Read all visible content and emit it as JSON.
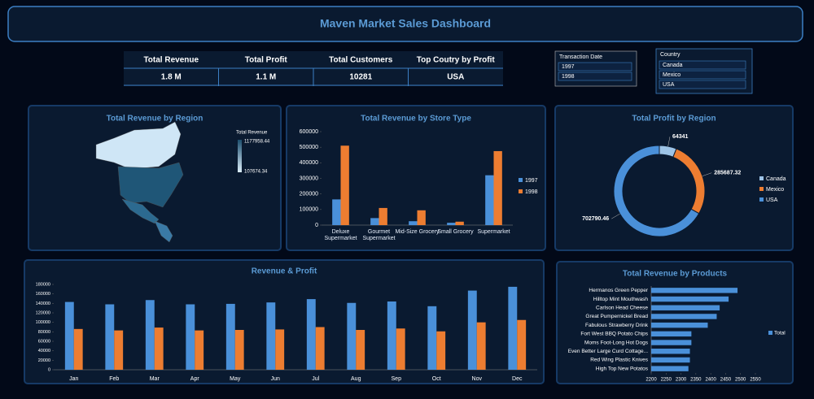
{
  "header": {
    "title": "Maven Market Sales Dashboard"
  },
  "kpis": {
    "headers": [
      "Total Revenue",
      "Total Profit",
      "Total Customers",
      "Top Coutry by Profit"
    ],
    "values": [
      "1.8 M",
      "1.1 M",
      "10281",
      "USA"
    ]
  },
  "slicers": [
    {
      "title": "Transaction Date",
      "items": [
        "1997",
        "1998"
      ]
    },
    {
      "title": "Country",
      "items": [
        "Canada",
        "Mexico",
        "USA"
      ]
    }
  ],
  "chart_data": [
    {
      "type": "map",
      "title": "Total Revenue by Region",
      "legend_title": "Total Revenue",
      "legend_max": 1177958.44,
      "legend_min": 107674.34
    },
    {
      "type": "bar",
      "title": "Total Revenue by Store Type",
      "categories": [
        "Deluxe Supermarket",
        "Gourmet Supermarket",
        "Mid-Size Grocery",
        "Small Grocery",
        "Supermarket"
      ],
      "series": [
        {
          "name": "1997",
          "color": "#4a90d9",
          "values": [
            165000,
            45000,
            25000,
            15000,
            320000
          ]
        },
        {
          "name": "1998",
          "color": "#ed7d31",
          "values": [
            510000,
            110000,
            95000,
            22000,
            475000
          ]
        }
      ],
      "ylim": [
        0,
        600000
      ],
      "yticks": [
        0,
        100000,
        200000,
        300000,
        400000,
        500000,
        600000
      ]
    },
    {
      "type": "donut",
      "title": "Total Profit by Region",
      "categories": [
        "Canada",
        "Mexico",
        "USA"
      ],
      "values": [
        64341,
        285687.32,
        702790.46
      ],
      "colors": [
        "#9dc3e6",
        "#ed7d31",
        "#4a90d9"
      ]
    },
    {
      "type": "bar",
      "title": "Revenue & Profit",
      "categories": [
        "Jan",
        "Feb",
        "Mar",
        "Apr",
        "May",
        "Jun",
        "Jul",
        "Aug",
        "Sep",
        "Oct",
        "Nov",
        "Dec"
      ],
      "series": [
        {
          "color": "#4a90d9",
          "values": [
            143000,
            138000,
            147000,
            138000,
            139000,
            142000,
            149000,
            141000,
            144000,
            134000,
            167000,
            175000
          ]
        },
        {
          "color": "#ed7d31",
          "values": [
            86000,
            83000,
            89000,
            83000,
            84000,
            85000,
            90000,
            84000,
            87000,
            81000,
            100000,
            105000
          ]
        }
      ],
      "ylim": [
        0,
        180000
      ],
      "yticks": [
        0,
        20000,
        40000,
        60000,
        80000,
        100000,
        120000,
        140000,
        160000,
        180000
      ]
    },
    {
      "type": "hbar",
      "title": "Total Revenue by Products",
      "categories": [
        "Hermanos Green Pepper",
        "Hilltop Mint Mouthwash",
        "Carlson Head Cheese",
        "Great Pumpernickel Bread",
        "Fabulous Strawberry Drink",
        "Fort West BBQ Potato Chips",
        "Moms Foot-Long Hot Dogs",
        "Even Better Large Curd Cottage...",
        "Red Wing Plastic Knives",
        "High Top New Potatos"
      ],
      "series": [
        {
          "name": "Total",
          "color": "#4a90d9",
          "values": [
            2490,
            2460,
            2430,
            2420,
            2390,
            2335,
            2335,
            2330,
            2330,
            2325
          ]
        }
      ],
      "xlim": [
        2200,
        2550
      ],
      "xticks": [
        2200,
        2250,
        2300,
        2350,
        2400,
        2450,
        2500,
        2550
      ]
    }
  ]
}
